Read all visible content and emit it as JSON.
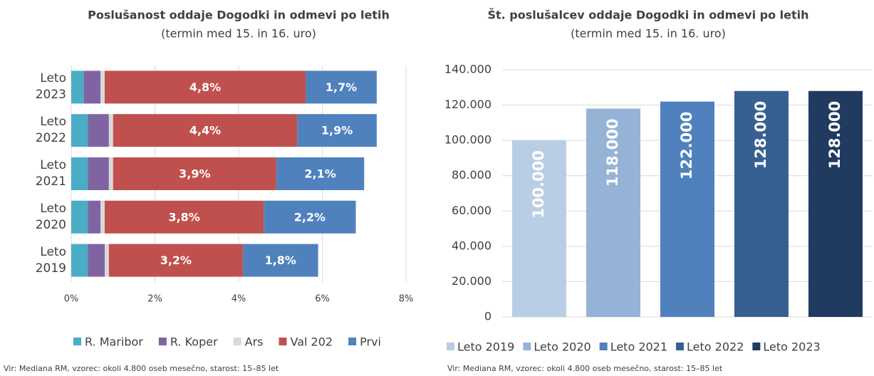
{
  "chart_data": [
    {
      "type": "stacked-barh",
      "title": "Poslušanost oddaje Dogodki in odmevi po letih",
      "subtitle": "(termin med 15. in 16. uro)",
      "categories": [
        "Leto 2023",
        "Leto 2022",
        "Leto 2021",
        "Leto 2020",
        "Leto 2019"
      ],
      "series": [
        {
          "name": "R. Maribor",
          "color": "#4bacc6",
          "values": [
            0.3,
            0.4,
            0.4,
            0.4,
            0.4
          ]
        },
        {
          "name": "R. Koper",
          "color": "#8064a2",
          "values": [
            0.4,
            0.5,
            0.5,
            0.3,
            0.4
          ]
        },
        {
          "name": "Ars",
          "color": "#d9d9d9",
          "values": [
            0.1,
            0.1,
            0.1,
            0.1,
            0.1
          ]
        },
        {
          "name": "Val 202",
          "color": "#c0504d",
          "values": [
            4.8,
            4.4,
            3.9,
            3.8,
            3.2
          ],
          "value_labels": [
            "4,8%",
            "4,4%",
            "3,9%",
            "3,8%",
            "3,2%"
          ]
        },
        {
          "name": "Prvi",
          "color": "#4f81bd",
          "values": [
            1.7,
            1.9,
            2.1,
            2.2,
            1.8
          ],
          "value_labels": [
            "1,7%",
            "1,9%",
            "2,1%",
            "2,2%",
            "1,8%"
          ]
        }
      ],
      "xlim": [
        0,
        8
      ],
      "xticks": [
        {
          "value": 0,
          "label": "0%"
        },
        {
          "value": 2,
          "label": "2%"
        },
        {
          "value": 4,
          "label": "4%"
        },
        {
          "value": 6,
          "label": "6%"
        },
        {
          "value": 8,
          "label": "8%"
        }
      ],
      "grid": true,
      "legend": "bottom",
      "source": "Vir: Mediana RM, vzorec: okoli 4.800 oseb mesečno, starost: 15–85 let"
    },
    {
      "type": "bar",
      "title": "Št. poslušalcev oddaje Dogodki in odmevi po letih",
      "subtitle": "(termin med 15. in 16. uro)",
      "categories": [
        "Leto 2019",
        "Leto 2020",
        "Leto 2021",
        "Leto 2022",
        "Leto 2023"
      ],
      "values": [
        100000,
        118000,
        122000,
        128000,
        128000
      ],
      "value_labels": [
        "100.000",
        "118.000",
        "122.000",
        "128.000",
        "128.000"
      ],
      "colors": [
        "#b9cde5",
        "#95b3d7",
        "#4f81bd",
        "#376092",
        "#203a60"
      ],
      "ylim": [
        0,
        140000
      ],
      "yticks": [
        0,
        {
          "value": 20000,
          "label": "20.000"
        },
        {
          "value": 40000,
          "label": "40.000"
        },
        {
          "value": 60000,
          "label": "60.000"
        },
        {
          "value": 80000,
          "label": "80.000"
        },
        {
          "value": 100000,
          "label": "100.000"
        },
        {
          "value": 120000,
          "label": "120.000"
        },
        {
          "value": 140000,
          "label": "140.000"
        }
      ],
      "grid": true,
      "legend": "bottom",
      "source": "Vir: Mediana RM, vzorec: okoli 4.800 oseb mesečno, starost: 15–85 let"
    }
  ]
}
